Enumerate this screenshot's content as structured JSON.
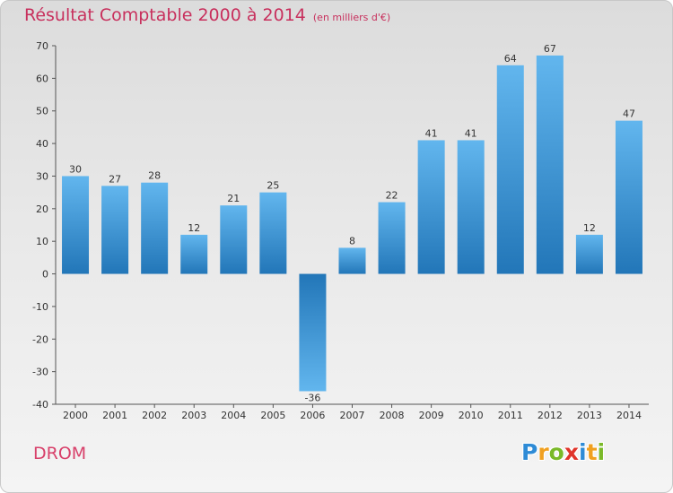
{
  "chart_data": {
    "type": "bar",
    "title": "Résultat Comptable 2000 à 2014",
    "subtitle": "(en milliers d'€)",
    "categories": [
      "2000",
      "2001",
      "2002",
      "2003",
      "2004",
      "2005",
      "2006",
      "2007",
      "2008",
      "2009",
      "2010",
      "2011",
      "2012",
      "2013",
      "2014"
    ],
    "values": [
      30,
      27,
      28,
      12,
      21,
      25,
      -36,
      8,
      22,
      41,
      41,
      64,
      67,
      12,
      47
    ],
    "value_labels": [
      "30",
      "27",
      "28",
      "12",
      "21",
      "25",
      "-36",
      "8",
      "22",
      "41",
      "41",
      "64",
      "67",
      "12",
      "47"
    ],
    "ylim": [
      -40,
      70
    ],
    "yticks": [
      70,
      60,
      50,
      40,
      30,
      20,
      10,
      0,
      -10,
      -20,
      -30,
      -40
    ],
    "ytick_labels": [
      "70",
      "60",
      "50",
      "40",
      "30",
      "20",
      "10",
      "0",
      "-10",
      "-20",
      "-30",
      "-40"
    ],
    "xlabel": "",
    "ylabel": "",
    "grid": false,
    "legend": "none"
  },
  "commune": "DROM",
  "brand": {
    "name": "Proxiti",
    "letters": [
      {
        "char": "P",
        "color": "#2e8bd6"
      },
      {
        "char": "r",
        "color": "#f0a020"
      },
      {
        "char": "o",
        "color": "#7ab929"
      },
      {
        "char": "x",
        "color": "#e0342a"
      },
      {
        "char": "i",
        "color": "#2e8bd6"
      },
      {
        "char": "t",
        "color": "#f0a020"
      },
      {
        "char": "i",
        "color": "#7ab929"
      }
    ]
  },
  "colors": {
    "title": "#c8305d",
    "bar_light": "#5fb3ec",
    "bar_dark": "#2276b8",
    "axis": "#555555",
    "text": "#333333"
  }
}
